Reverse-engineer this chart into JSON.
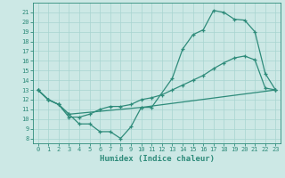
{
  "line1_x": [
    0,
    1,
    2,
    3,
    10,
    11,
    13,
    14,
    15,
    16,
    17,
    18,
    19,
    20,
    21,
    22,
    23
  ],
  "line1_y": [
    13,
    12,
    11.5,
    10.5,
    11.2,
    11.2,
    14.2,
    17.2,
    18.7,
    19.2,
    21.2,
    21.0,
    20.3,
    20.2,
    19.0,
    14.7,
    13.0
  ],
  "line2_x": [
    0,
    1,
    2,
    3,
    4,
    5,
    6,
    7,
    8,
    9,
    10,
    11,
    12,
    13,
    14,
    15,
    16,
    17,
    18,
    19,
    20,
    21,
    22,
    23
  ],
  "line2_y": [
    13,
    12,
    11.5,
    10.2,
    10.2,
    10.5,
    11.0,
    11.3,
    11.3,
    11.5,
    12.0,
    12.2,
    12.5,
    13.0,
    13.5,
    14.0,
    14.5,
    15.2,
    15.8,
    16.3,
    16.5,
    16.1,
    13.2,
    13.0
  ],
  "line3_x": [
    0,
    1,
    2,
    3,
    4,
    5,
    6,
    7,
    8,
    9,
    10,
    23
  ],
  "line3_y": [
    13,
    12,
    11.5,
    10.5,
    9.5,
    9.5,
    8.7,
    8.7,
    8.0,
    9.2,
    11.2,
    13.0
  ],
  "line_color": "#2e8b7a",
  "bg_color": "#cce8e5",
  "grid_color": "#a8d4d0",
  "xlabel": "Humidex (Indice chaleur)",
  "xlim": [
    -0.5,
    23.5
  ],
  "ylim": [
    7.5,
    22.0
  ],
  "xticks": [
    0,
    1,
    2,
    3,
    4,
    5,
    6,
    7,
    8,
    9,
    10,
    11,
    12,
    13,
    14,
    15,
    16,
    17,
    18,
    19,
    20,
    21,
    22,
    23
  ],
  "yticks": [
    8,
    9,
    10,
    11,
    12,
    13,
    14,
    15,
    16,
    17,
    18,
    19,
    20,
    21
  ],
  "tick_fontsize": 5.0,
  "xlabel_fontsize": 6.5,
  "marker": "+",
  "markersize": 3.5,
  "linewidth": 0.9
}
